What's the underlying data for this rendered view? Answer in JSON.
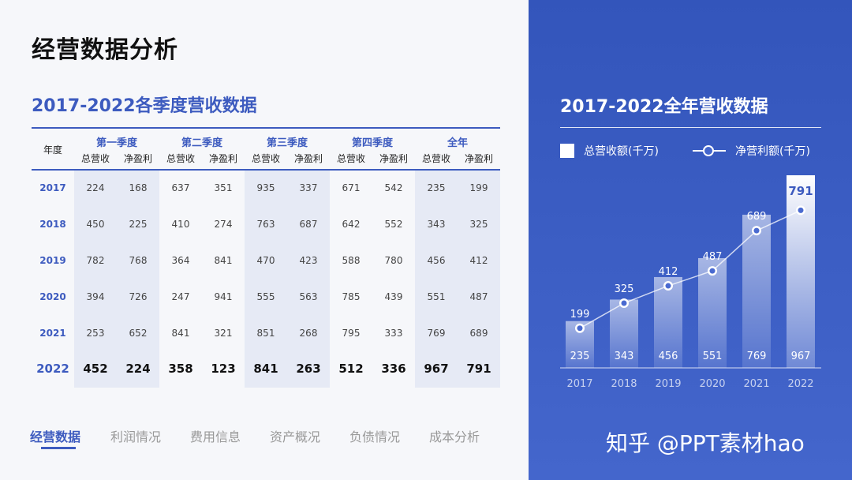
{
  "page_title": "经营数据分析",
  "table": {
    "title": "2017-2022各季度营收数据",
    "year_header": "年度",
    "quarters": [
      "第一季度",
      "第二季度",
      "第三季度",
      "第四季度",
      "全年"
    ],
    "sub_headers": [
      "总营收",
      "净盈利"
    ],
    "rows": [
      {
        "year": "2017",
        "values": [
          "224",
          "168",
          "637",
          "351",
          "935",
          "337",
          "671",
          "542",
          "235",
          "199"
        ]
      },
      {
        "year": "2018",
        "values": [
          "450",
          "225",
          "410",
          "274",
          "763",
          "687",
          "642",
          "552",
          "343",
          "325"
        ]
      },
      {
        "year": "2019",
        "values": [
          "782",
          "768",
          "364",
          "841",
          "470",
          "423",
          "588",
          "780",
          "456",
          "412"
        ]
      },
      {
        "year": "2020",
        "values": [
          "394",
          "726",
          "247",
          "941",
          "555",
          "563",
          "785",
          "439",
          "551",
          "487"
        ]
      },
      {
        "year": "2021",
        "values": [
          "253",
          "652",
          "841",
          "321",
          "851",
          "268",
          "795",
          "333",
          "769",
          "689"
        ]
      },
      {
        "year": "2022",
        "values": [
          "452",
          "224",
          "358",
          "123",
          "841",
          "263",
          "512",
          "336",
          "967",
          "791"
        ]
      }
    ]
  },
  "nav": {
    "tabs": [
      "经营数据",
      "利润情况",
      "费用信息",
      "资产概况",
      "负债情况",
      "成本分析"
    ],
    "active_index": 0
  },
  "chart_data": {
    "type": "bar",
    "title": "2017-2022全年营收数据",
    "legend": [
      "总营收额(千万)",
      "净营利额(千万)"
    ],
    "categories": [
      "2017",
      "2018",
      "2019",
      "2020",
      "2021",
      "2022"
    ],
    "series": [
      {
        "name": "总营收额(千万)",
        "type": "bar",
        "values": [
          235,
          343,
          456,
          551,
          769,
          967
        ]
      },
      {
        "name": "净营利额(千万)",
        "type": "line",
        "values": [
          199,
          325,
          412,
          487,
          689,
          791
        ]
      }
    ],
    "ylim": [
      0,
      1000
    ]
  },
  "watermark": "知乎 @PPT素材hao",
  "colors": {
    "accent": "#3d5bbf",
    "panel": "#3f5fc4",
    "shade": "#e6eaf5"
  }
}
